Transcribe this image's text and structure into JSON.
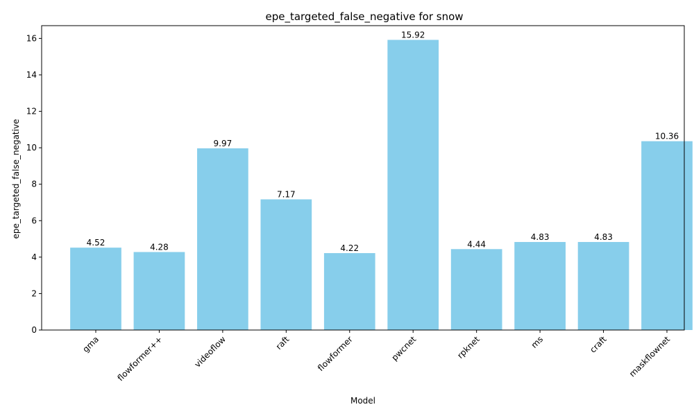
{
  "chart_data": {
    "type": "bar",
    "title": "epe_targeted_false_negative for snow",
    "xlabel": "Model",
    "ylabel": "epe_targeted_false_negative",
    "categories": [
      "gma",
      "flowformer++",
      "videoflow",
      "raft",
      "flowformer",
      "pwcnet",
      "rpknet",
      "ms",
      "craft",
      "maskflownet"
    ],
    "values": [
      4.52,
      4.28,
      9.97,
      7.17,
      4.22,
      15.92,
      4.44,
      4.83,
      4.83,
      10.36
    ],
    "data_labels": [
      "4.52",
      "4.28",
      "9.97",
      "7.17",
      "4.22",
      "15.92",
      "4.44",
      "4.83",
      "4.83",
      "10.36"
    ],
    "ylim": [
      0,
      16.7
    ],
    "yticks": [
      0,
      2,
      4,
      6,
      8,
      10,
      12,
      14,
      16
    ],
    "bar_color": "#87CEEB",
    "grid": false,
    "legend": "none"
  }
}
